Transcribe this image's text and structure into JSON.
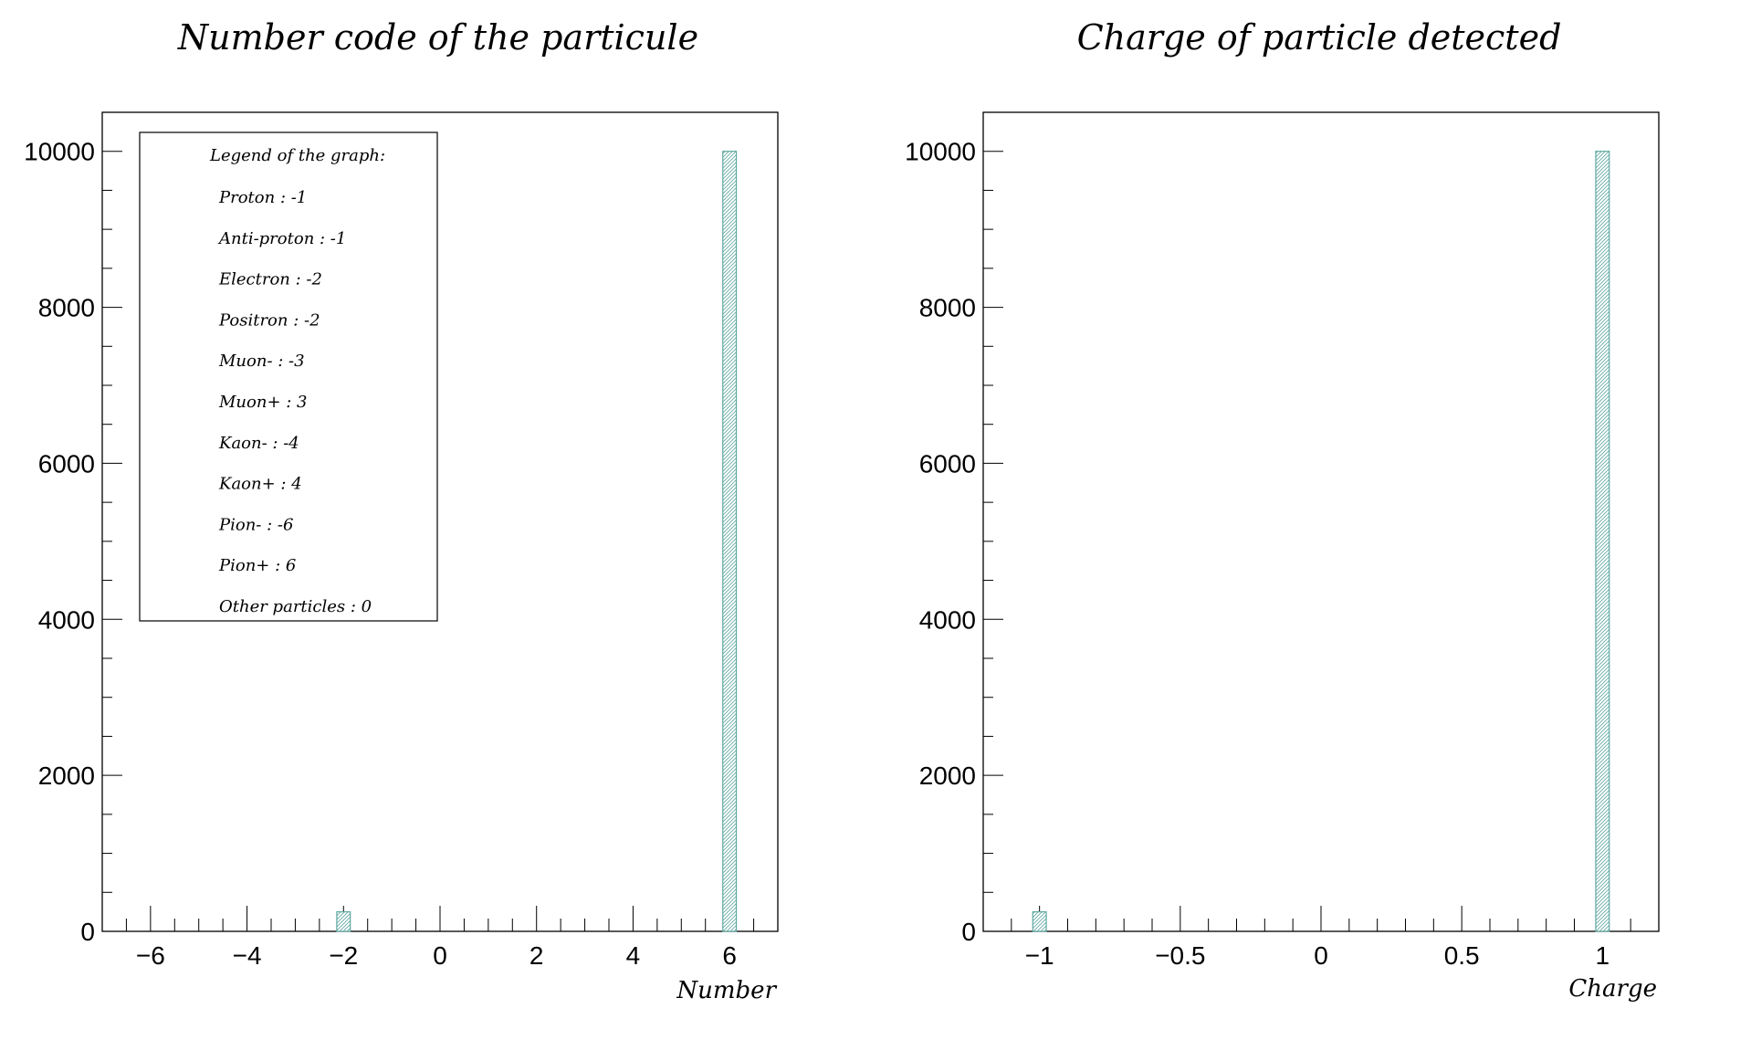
{
  "chart_data": [
    {
      "type": "bar",
      "title": "Number code of the particule",
      "xlabel": "Number",
      "ylabel": "",
      "xlim": [
        -7,
        7
      ],
      "ylim": [
        0,
        10500
      ],
      "xticks": [
        -6,
        -4,
        -2,
        0,
        2,
        4,
        6
      ],
      "xtick_labels": [
        "−6",
        "−4",
        "−2",
        "0",
        "2",
        "4",
        "6"
      ],
      "yticks": [
        0,
        2000,
        4000,
        6000,
        8000,
        10000
      ],
      "ytick_labels": [
        "0",
        "2000",
        "4000",
        "6000",
        "8000",
        "10000"
      ],
      "bars": [
        {
          "x": -2,
          "value": 250
        },
        {
          "x": 6,
          "value": 10000
        }
      ],
      "legend": {
        "title": "Legend of the graph:",
        "entries": [
          "Proton : -1",
          "Anti-proton : -1",
          "Electron : -2",
          "Positron : -2",
          "Muon- : -3",
          "Muon+ : 3",
          "Kaon- : -4",
          "Kaon+ : 4",
          "Pion- : -6",
          "Pion+ : 6",
          "Other particles : 0"
        ],
        "placement": "top-left"
      },
      "bar_color": "#5fa8a0"
    },
    {
      "type": "bar",
      "title": "Charge of particle detected",
      "xlabel": "Charge",
      "ylabel": "",
      "xlim": [
        -1.2,
        1.2
      ],
      "ylim": [
        0,
        10500
      ],
      "xticks": [
        -1,
        -0.5,
        0,
        0.5,
        1
      ],
      "xtick_labels": [
        "−1",
        "−0.5",
        "0",
        "0.5",
        "1"
      ],
      "yticks": [
        0,
        2000,
        4000,
        6000,
        8000,
        10000
      ],
      "ytick_labels": [
        "0",
        "2000",
        "4000",
        "6000",
        "8000",
        "10000"
      ],
      "bars": [
        {
          "x": -1,
          "value": 250
        },
        {
          "x": 1,
          "value": 10000
        }
      ],
      "bar_color": "#5fa8a0"
    }
  ]
}
